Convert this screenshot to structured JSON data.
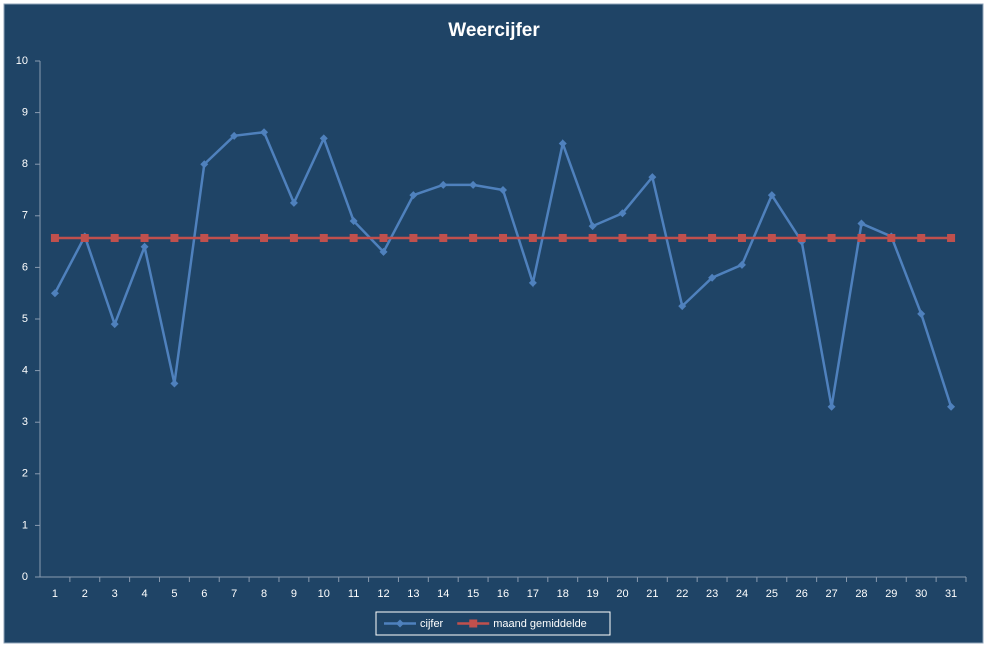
{
  "chart_data": {
    "type": "line",
    "title": "Weercijfer",
    "categories": [
      1,
      2,
      3,
      4,
      5,
      6,
      7,
      8,
      9,
      10,
      11,
      12,
      13,
      14,
      15,
      16,
      17,
      18,
      19,
      20,
      21,
      22,
      23,
      24,
      25,
      26,
      27,
      28,
      29,
      30,
      31
    ],
    "series": [
      {
        "name": "cijfer",
        "color": "#4f81bd",
        "marker": "diamond",
        "values": [
          5.5,
          6.6,
          4.9,
          6.4,
          3.75,
          8.0,
          8.55,
          8.62,
          7.25,
          8.5,
          6.9,
          6.3,
          7.4,
          7.6,
          7.6,
          7.5,
          5.7,
          8.4,
          6.8,
          7.05,
          7.75,
          5.25,
          5.8,
          6.05,
          7.4,
          6.5,
          3.3,
          6.85,
          6.6,
          5.1,
          3.3
        ]
      },
      {
        "name": "maand gemiddelde",
        "color": "#c0504d",
        "marker": "square",
        "values": [
          6.57,
          6.57,
          6.57,
          6.57,
          6.57,
          6.57,
          6.57,
          6.57,
          6.57,
          6.57,
          6.57,
          6.57,
          6.57,
          6.57,
          6.57,
          6.57,
          6.57,
          6.57,
          6.57,
          6.57,
          6.57,
          6.57,
          6.57,
          6.57,
          6.57,
          6.57,
          6.57,
          6.57,
          6.57,
          6.57,
          6.57
        ]
      }
    ],
    "ylim": [
      0,
      10
    ],
    "yticks": [
      0,
      1,
      2,
      3,
      4,
      5,
      6,
      7,
      8,
      9,
      10
    ],
    "grid": false,
    "legend": "bottom"
  }
}
